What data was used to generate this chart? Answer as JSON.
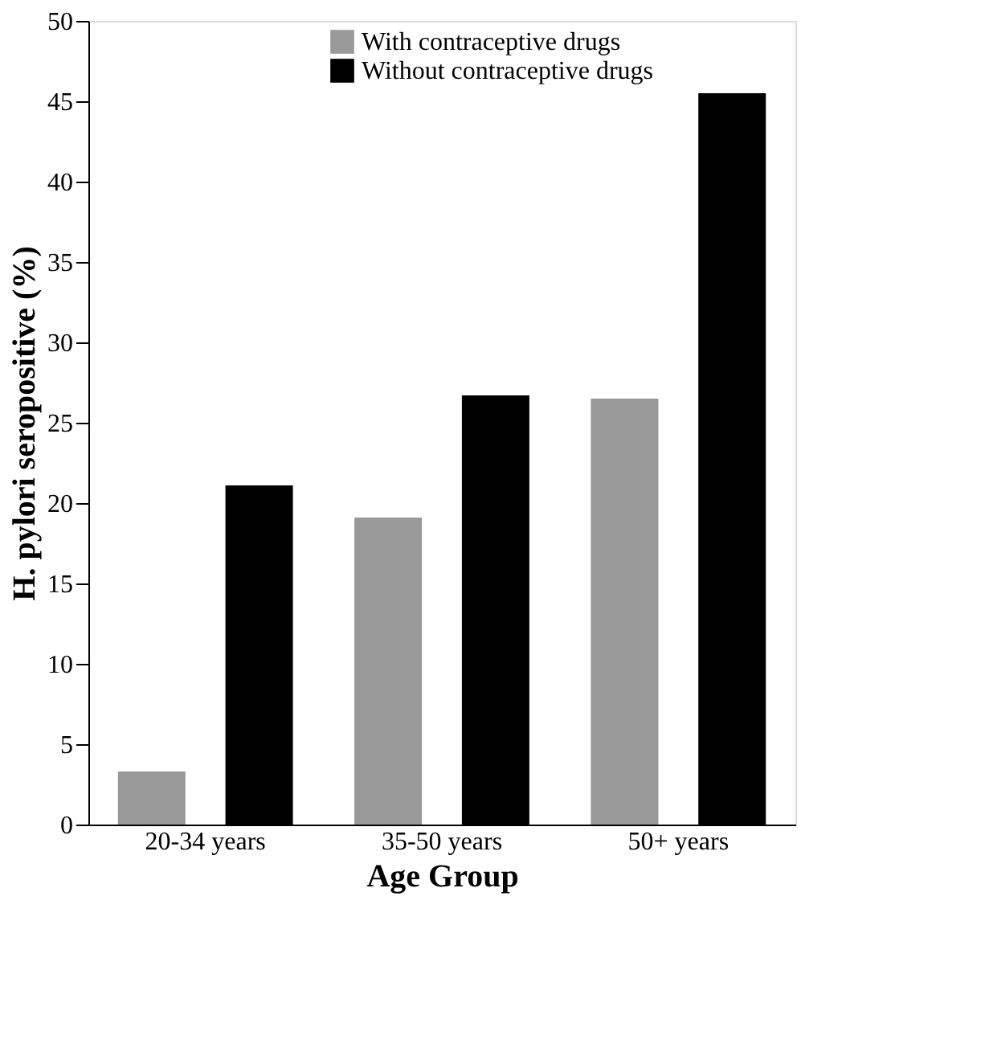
{
  "chart_data": {
    "type": "bar",
    "xlabel": "Age Group",
    "ylabel": "H. pylori seropositive (%)",
    "categories": [
      "20-34 years",
      "35-50 years",
      "50+ years"
    ],
    "series": [
      {
        "name": "With contraceptive drugs",
        "color": "#999999",
        "values": [
          3.3,
          19.1,
          26.5
        ]
      },
      {
        "name": "Without contraceptive drugs",
        "color": "#000000",
        "values": [
          21.1,
          26.7,
          45.5
        ]
      }
    ],
    "ylim": [
      0,
      50
    ],
    "yticks": [
      0,
      5,
      10,
      15,
      20,
      25,
      30,
      35,
      40,
      45,
      50
    ],
    "grid": false,
    "legend": "top"
  }
}
